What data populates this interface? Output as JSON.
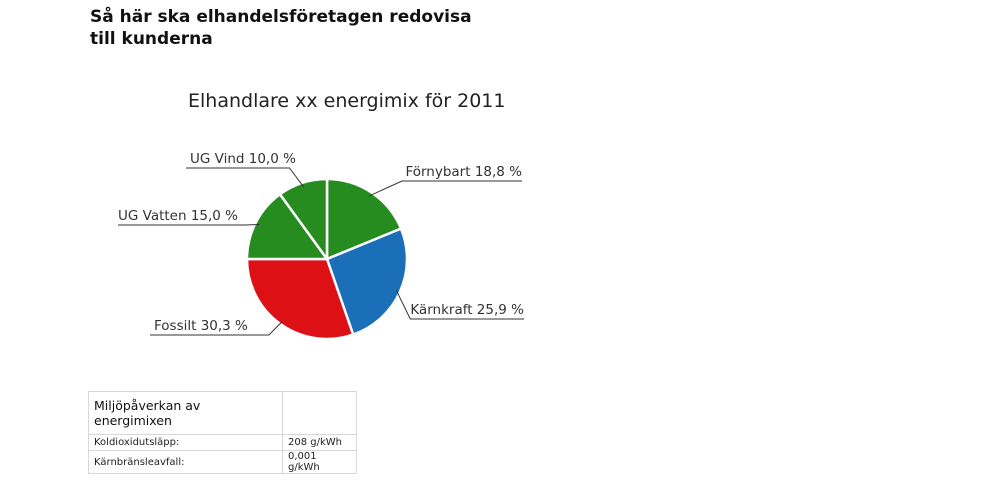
{
  "headline": "Så här ska elhandelsföretagen redovisa till kunderna",
  "chart_data": {
    "type": "pie",
    "title": "Elhandlare xx energimix för 2011",
    "slices": [
      {
        "label": "Förnybart 18,8 %",
        "name": "Förnybart",
        "value": 18.8,
        "color": "#268c1f"
      },
      {
        "label": "Kärnkraft 25,9 %",
        "name": "Kärnkraft",
        "value": 25.9,
        "color": "#1b6fb8"
      },
      {
        "label": "Fossilt 30,3 %",
        "name": "Fossilt",
        "value": 30.3,
        "color": "#dd1016"
      },
      {
        "label": "UG Vatten 15,0 %",
        "name": "UG Vatten",
        "value": 15.0,
        "color": "#268c1f"
      },
      {
        "label": "UG Vind 10,0 %",
        "name": "UG Vind",
        "value": 10.0,
        "color": "#268c1f"
      }
    ]
  },
  "impact_table": {
    "heading": "Miljöpåverkan av energimixen",
    "rows": [
      {
        "label": "Koldioxidutsläpp:",
        "value": "208 g/kWh"
      },
      {
        "label": "Kärnbränsleavfall:",
        "value": "0,001 g/kWh"
      }
    ]
  }
}
